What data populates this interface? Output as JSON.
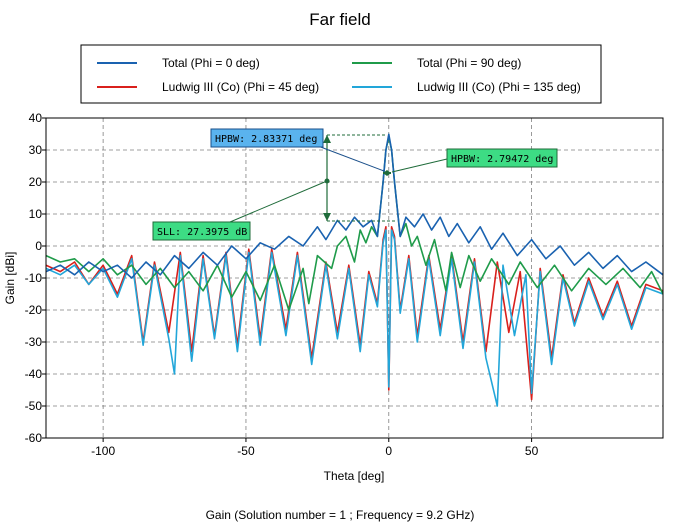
{
  "chart_data": {
    "type": "line",
    "title": "Far field",
    "xlabel": "Theta [deg]",
    "ylabel": "Gain [dBi]",
    "caption": "Gain (Solution number = 1 ; Frequency = 9.2 GHz)",
    "xlim": [
      -120,
      96
    ],
    "ylim": [
      -60,
      40
    ],
    "xticks": [
      -100,
      -50,
      0,
      50
    ],
    "yticks": [
      40,
      30,
      20,
      10,
      0,
      -10,
      -20,
      -30,
      -40,
      -50,
      -60
    ],
    "grid": true,
    "legend_position": "top",
    "series": [
      {
        "name": "Total (Phi = 0 deg)",
        "color": "#1a62b0",
        "points": [
          [
            -120,
            -8
          ],
          [
            -115,
            -6
          ],
          [
            -110,
            -9
          ],
          [
            -105,
            -5
          ],
          [
            -100,
            -8
          ],
          [
            -95,
            -6
          ],
          [
            -90,
            -10
          ],
          [
            -85,
            -5
          ],
          [
            -80,
            -9
          ],
          [
            -75,
            -3
          ],
          [
            -70,
            -7
          ],
          [
            -65,
            -2
          ],
          [
            -60,
            -6
          ],
          [
            -55,
            0
          ],
          [
            -50,
            -4
          ],
          [
            -45,
            1
          ],
          [
            -40,
            -1
          ],
          [
            -35,
            3
          ],
          [
            -30,
            0
          ],
          [
            -25,
            6
          ],
          [
            -22,
            2
          ],
          [
            -18,
            8
          ],
          [
            -15,
            5
          ],
          [
            -12,
            9
          ],
          [
            -9,
            6
          ],
          [
            -6,
            8
          ],
          [
            -4,
            3
          ],
          [
            -2,
            20
          ],
          [
            -1,
            30
          ],
          [
            0,
            34.9
          ],
          [
            1,
            30
          ],
          [
            2,
            20
          ],
          [
            4,
            3
          ],
          [
            6,
            9
          ],
          [
            9,
            6
          ],
          [
            12,
            10
          ],
          [
            15,
            5
          ],
          [
            18,
            9
          ],
          [
            21,
            3
          ],
          [
            24,
            7
          ],
          [
            28,
            1
          ],
          [
            32,
            6
          ],
          [
            36,
            -1
          ],
          [
            40,
            4
          ],
          [
            45,
            -3
          ],
          [
            50,
            2
          ],
          [
            55,
            -4
          ],
          [
            60,
            0
          ],
          [
            65,
            -6
          ],
          [
            70,
            -2
          ],
          [
            75,
            -7
          ],
          [
            80,
            -3
          ],
          [
            85,
            -8
          ],
          [
            90,
            -5
          ],
          [
            96,
            -9
          ]
        ]
      },
      {
        "name": "Total (Phi = 90 deg)",
        "color": "#1f9b4a",
        "points": [
          [
            -120,
            -3
          ],
          [
            -115,
            -5
          ],
          [
            -110,
            -4
          ],
          [
            -105,
            -8
          ],
          [
            -100,
            -4
          ],
          [
            -95,
            -9
          ],
          [
            -90,
            -6
          ],
          [
            -85,
            -12
          ],
          [
            -80,
            -7
          ],
          [
            -75,
            -13
          ],
          [
            -70,
            -8
          ],
          [
            -65,
            -14
          ],
          [
            -60,
            -6
          ],
          [
            -55,
            -16
          ],
          [
            -50,
            -8
          ],
          [
            -45,
            -17
          ],
          [
            -40,
            -6
          ],
          [
            -35,
            -20
          ],
          [
            -30,
            -7
          ],
          [
            -28,
            -18
          ],
          [
            -25,
            -3
          ],
          [
            -20,
            -7
          ],
          [
            -18,
            0
          ],
          [
            -15,
            3
          ],
          [
            -12,
            -5
          ],
          [
            -10,
            5
          ],
          [
            -8,
            1
          ],
          [
            -6,
            6
          ],
          [
            -4,
            3
          ],
          [
            -2,
            20
          ],
          [
            -1,
            30
          ],
          [
            0,
            34
          ],
          [
            1,
            30
          ],
          [
            2,
            20
          ],
          [
            4,
            3
          ],
          [
            6,
            7
          ],
          [
            8,
            0
          ],
          [
            10,
            3
          ],
          [
            13,
            -6
          ],
          [
            16,
            2
          ],
          [
            20,
            -14
          ],
          [
            22,
            -2
          ],
          [
            25,
            -13
          ],
          [
            28,
            -3
          ],
          [
            32,
            -11
          ],
          [
            36,
            -4
          ],
          [
            42,
            -12
          ],
          [
            46,
            -5
          ],
          [
            52,
            -13
          ],
          [
            58,
            -6
          ],
          [
            64,
            -14
          ],
          [
            70,
            -7
          ],
          [
            76,
            -12
          ],
          [
            82,
            -7
          ],
          [
            88,
            -13
          ],
          [
            92,
            -8
          ],
          [
            96,
            -15
          ]
        ]
      },
      {
        "name": "Ludwig III (Co) (Phi = 45 deg)",
        "color": "#d9201c",
        "points": [
          [
            -120,
            -6
          ],
          [
            -115,
            -8
          ],
          [
            -110,
            -5
          ],
          [
            -105,
            -12
          ],
          [
            -100,
            -6
          ],
          [
            -95,
            -15
          ],
          [
            -90,
            -3
          ],
          [
            -86,
            -30
          ],
          [
            -82,
            -5
          ],
          [
            -77,
            -27
          ],
          [
            -73,
            -2
          ],
          [
            -69,
            -33
          ],
          [
            -65,
            -3
          ],
          [
            -61,
            -28
          ],
          [
            -57,
            -2
          ],
          [
            -53,
            -31
          ],
          [
            -49,
            -1
          ],
          [
            -45,
            -29
          ],
          [
            -41,
            -1
          ],
          [
            -36,
            -26
          ],
          [
            -32,
            -2
          ],
          [
            -27,
            -35
          ],
          [
            -22,
            -5
          ],
          [
            -18,
            -27
          ],
          [
            -14,
            -6
          ],
          [
            -10,
            -31
          ],
          [
            -7,
            -8
          ],
          [
            -4,
            -18
          ],
          [
            -2,
            2
          ],
          [
            -1,
            6
          ],
          [
            0,
            -45
          ],
          [
            1,
            6
          ],
          [
            2,
            3
          ],
          [
            4,
            -20
          ],
          [
            7,
            -3
          ],
          [
            10,
            -28
          ],
          [
            14,
            -3
          ],
          [
            18,
            -26
          ],
          [
            22,
            -3
          ],
          [
            26,
            -30
          ],
          [
            30,
            -4
          ],
          [
            34,
            -33
          ],
          [
            38,
            -5
          ],
          [
            42,
            -27
          ],
          [
            46,
            -8
          ],
          [
            50,
            -48
          ],
          [
            53,
            -7
          ],
          [
            57,
            -35
          ],
          [
            61,
            -9
          ],
          [
            65,
            -24
          ],
          [
            70,
            -10
          ],
          [
            75,
            -22
          ],
          [
            80,
            -11
          ],
          [
            85,
            -25
          ],
          [
            90,
            -12
          ],
          [
            96,
            -14
          ]
        ]
      },
      {
        "name": "Ludwig III (Co) (Phi = 135 deg)",
        "color": "#22a6d9",
        "points": [
          [
            -120,
            -7
          ],
          [
            -115,
            -9
          ],
          [
            -110,
            -6
          ],
          [
            -105,
            -12
          ],
          [
            -100,
            -7
          ],
          [
            -95,
            -16
          ],
          [
            -90,
            -4
          ],
          [
            -86,
            -31
          ],
          [
            -82,
            -6
          ],
          [
            -77,
            -29
          ],
          [
            -75,
            -40
          ],
          [
            -73,
            -3
          ],
          [
            -69,
            -36
          ],
          [
            -65,
            -4
          ],
          [
            -61,
            -29
          ],
          [
            -57,
            -3
          ],
          [
            -53,
            -33
          ],
          [
            -49,
            -2
          ],
          [
            -45,
            -31
          ],
          [
            -41,
            -2
          ],
          [
            -36,
            -28
          ],
          [
            -32,
            -3
          ],
          [
            -27,
            -37
          ],
          [
            -22,
            -6
          ],
          [
            -18,
            -29
          ],
          [
            -14,
            -7
          ],
          [
            -10,
            -33
          ],
          [
            -7,
            -9
          ],
          [
            -4,
            -19
          ],
          [
            -2,
            1
          ],
          [
            -1,
            5
          ],
          [
            0,
            -44
          ],
          [
            1,
            5
          ],
          [
            2,
            2
          ],
          [
            4,
            -21
          ],
          [
            7,
            -4
          ],
          [
            10,
            -30
          ],
          [
            14,
            -4
          ],
          [
            18,
            -28
          ],
          [
            22,
            -4
          ],
          [
            26,
            -32
          ],
          [
            30,
            -5
          ],
          [
            34,
            -35
          ],
          [
            38,
            -50
          ],
          [
            40,
            -6
          ],
          [
            44,
            -28
          ],
          [
            48,
            -9
          ],
          [
            50,
            -46
          ],
          [
            53,
            -8
          ],
          [
            57,
            -37
          ],
          [
            61,
            -10
          ],
          [
            65,
            -25
          ],
          [
            70,
            -11
          ],
          [
            75,
            -23
          ],
          [
            80,
            -12
          ],
          [
            85,
            -26
          ],
          [
            90,
            -13
          ],
          [
            96,
            -15
          ]
        ]
      }
    ],
    "annotations": [
      {
        "text": "HPBW: 2.83371 deg",
        "color": "#5ab3ee"
      },
      {
        "text": "HPBW: 2.79472 deg",
        "color": "#3ddc84"
      },
      {
        "text": "SLL: 27.3975 dB",
        "color": "#3ddc84"
      }
    ]
  }
}
